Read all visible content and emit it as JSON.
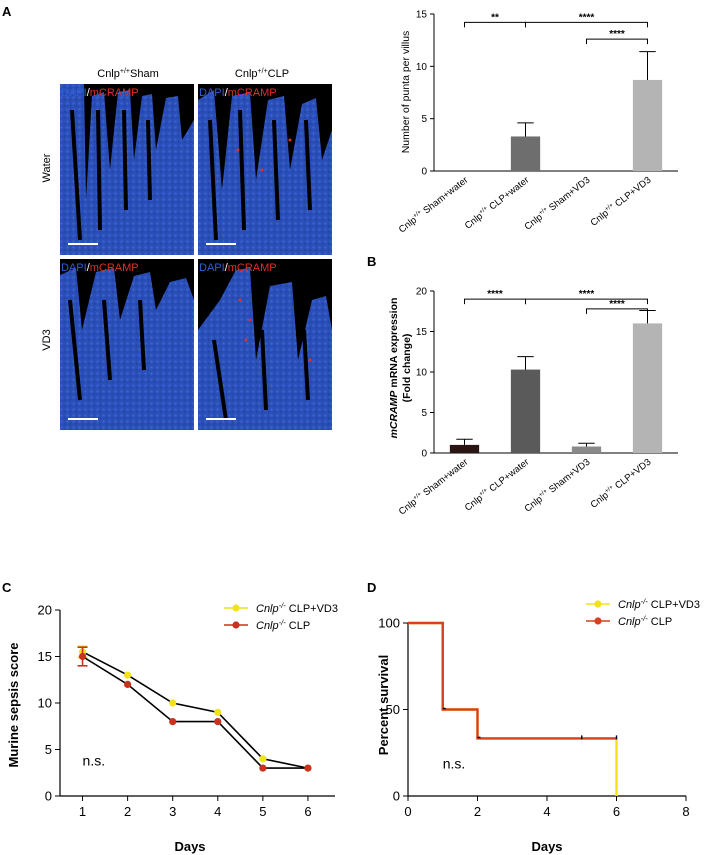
{
  "panel_labels": {
    "A": "A",
    "B": "B",
    "C": "C",
    "D": "D"
  },
  "micrographs": {
    "columns": [
      {
        "base": "Cnlp",
        "sup": "+/+",
        "rest": "Sham"
      },
      {
        "base": "Cnlp",
        "sup": "+/+",
        "rest": "CLP"
      }
    ],
    "rows": [
      "Water",
      "VD3"
    ],
    "stain_dapi": "DAPI",
    "stain_sep": "/",
    "stain_cramp": "mCRAMP",
    "colors": {
      "dapi": "#2f5fd6",
      "cramp": "#e0302a",
      "tissue": "#2a4fb8",
      "background": "#000000"
    }
  },
  "chart_data": [
    {
      "id": "A-bar",
      "type": "bar",
      "ylabel": "Number of punta per villus",
      "ylim": [
        0,
        15
      ],
      "yticks": [
        0,
        5,
        10,
        15
      ],
      "categories": [
        {
          "base": "Cnlp",
          "sup": "+/+",
          "rest": " Sham+water"
        },
        {
          "base": "Cnlp",
          "sup": "+/+",
          "rest": " CLP+water"
        },
        {
          "base": "Cnlp",
          "sup": "+/+",
          "rest": " Sham+VD3"
        },
        {
          "base": "Cnlp",
          "sup": "+/+",
          "rest": " CLP+VD3"
        }
      ],
      "values": [
        0,
        3.3,
        0,
        8.7
      ],
      "errors": [
        0,
        1.3,
        0,
        2.7
      ],
      "colors": [
        "#1a0a0a",
        "#6e6e6e",
        "#8a8a8a",
        "#b4b4b4"
      ],
      "significance": [
        {
          "from": 0,
          "to": 1,
          "label": "**",
          "y": 14.2
        },
        {
          "from": 1,
          "to": 3,
          "label": "****",
          "y": 14.2
        },
        {
          "from": 2,
          "to": 3,
          "label": "****",
          "y": 12.6
        }
      ]
    },
    {
      "id": "B-bar",
      "type": "bar",
      "ylabel_italic": "mCRAMP",
      "ylabel_rest": " mRNA expression",
      "ylabel2": "(Fold change)",
      "ylim": [
        0,
        20
      ],
      "yticks": [
        0,
        5,
        10,
        15,
        20
      ],
      "categories": [
        {
          "base": "Cnlp",
          "sup": "+/+",
          "rest": " Sham+water"
        },
        {
          "base": "Cnlp",
          "sup": "+/+",
          "rest": " CLP+water"
        },
        {
          "base": "Cnlp",
          "sup": "+/+",
          "rest": " Sham+VD3"
        },
        {
          "base": "Cnlp",
          "sup": "+/+",
          "rest": " CLP+VD3"
        }
      ],
      "values": [
        1.0,
        10.3,
        0.8,
        16.0
      ],
      "errors": [
        0.7,
        1.6,
        0.4,
        1.6
      ],
      "colors": [
        "#2b1414",
        "#5a5a5a",
        "#8a8a8a",
        "#b4b4b4"
      ],
      "significance": [
        {
          "from": 0,
          "to": 1,
          "label": "****",
          "y": 19.0
        },
        {
          "from": 1,
          "to": 3,
          "label": "****",
          "y": 19.0
        },
        {
          "from": 2,
          "to": 3,
          "label": "****",
          "y": 17.8
        }
      ]
    },
    {
      "id": "C-line",
      "type": "line",
      "xlabel": "Days",
      "ylabel": "Murine sepsis score",
      "xlim": [
        0.5,
        6.6
      ],
      "xticks": [
        1,
        2,
        3,
        4,
        5,
        6
      ],
      "ylim": [
        0,
        20
      ],
      "yticks": [
        0,
        5,
        10,
        15,
        20
      ],
      "annotation": "n.s.",
      "annotation_pos": [
        1.0,
        3.3
      ],
      "series": [
        {
          "name_italic": "Cnlp",
          "name_sup": "-/-",
          "name_rest": " CLP+VD3",
          "color": "#f2e21a",
          "x": [
            1,
            2,
            3,
            4,
            5,
            6
          ],
          "y": [
            15.5,
            13,
            10,
            9,
            4,
            3
          ],
          "err": [
            0.6,
            0,
            0,
            0,
            0,
            0
          ]
        },
        {
          "name_italic": "Cnlp",
          "name_sup": "-/-",
          "name_rest": " CLP",
          "color": "#c8321e",
          "x": [
            1,
            2,
            3,
            4,
            5,
            6
          ],
          "y": [
            15,
            12,
            8,
            8,
            3,
            3
          ],
          "err": [
            1.0,
            0,
            0,
            0,
            0,
            0
          ]
        }
      ]
    },
    {
      "id": "D-survival",
      "type": "line",
      "xlabel": "Days",
      "ylabel": "Percent survival",
      "xlim": [
        0,
        8
      ],
      "xticks": [
        0,
        2,
        4,
        6,
        8
      ],
      "ylim": [
        0,
        100
      ],
      "yticks": [
        0,
        50,
        100
      ],
      "annotation": "n.s.",
      "annotation_pos": [
        1.0,
        16
      ],
      "series": [
        {
          "name_italic": "Cnlp",
          "name_sup": "-/-",
          "name_rest": " CLP+VD3",
          "color": "#f2e21a",
          "x": [
            0,
            1,
            1,
            2,
            2,
            6,
            6
          ],
          "y": [
            100,
            100,
            50,
            50,
            33.3,
            33.3,
            0
          ]
        },
        {
          "name_italic": "Cnlp",
          "name_sup": "-/-",
          "name_rest": " CLP",
          "color": "#d8401e",
          "x": [
            0,
            1,
            1,
            2,
            2,
            6
          ],
          "y": [
            100,
            100,
            50,
            50,
            33.3,
            33.3
          ]
        }
      ],
      "censor_x": [
        5,
        6
      ]
    }
  ]
}
